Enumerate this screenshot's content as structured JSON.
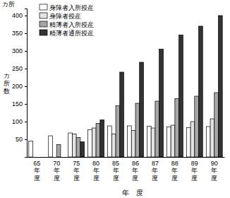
{
  "chart_data": {
    "type": "bar",
    "y_label": "カ所数",
    "x_label": "年　度",
    "annotations": [
      "カ所"
    ],
    "categories": [
      "65年度",
      "70年度",
      "75年度",
      "80年度",
      "85年度",
      "86年度",
      "87年度",
      "88年度",
      "89年度",
      "90年度"
    ],
    "series": [
      {
        "name": "身障者入所授産",
        "color": "#ffffff",
        "values": [
          45,
          60,
          68,
          77,
          88,
          88,
          87,
          85,
          83,
          86
        ]
      },
      {
        "name": "身障者授産",
        "color": "#e2e2e2",
        "values": [
          null,
          null,
          65,
          82,
          65,
          75,
          82,
          90,
          100,
          108
        ]
      },
      {
        "name": "精薄者入所授産",
        "color": "#a6a6a6",
        "values": [
          null,
          35,
          55,
          95,
          145,
          152,
          158,
          165,
          172,
          182
        ]
      },
      {
        "name": "精薄者通所授産",
        "color": "#333333",
        "values": [
          null,
          null,
          43,
          105,
          240,
          268,
          305,
          345,
          370,
          400
        ]
      }
    ],
    "ylim": [
      0,
      420
    ],
    "yticks": [
      50,
      100,
      150,
      200,
      250,
      300,
      350,
      400
    ],
    "legend": "upper left",
    "grid": false
  }
}
